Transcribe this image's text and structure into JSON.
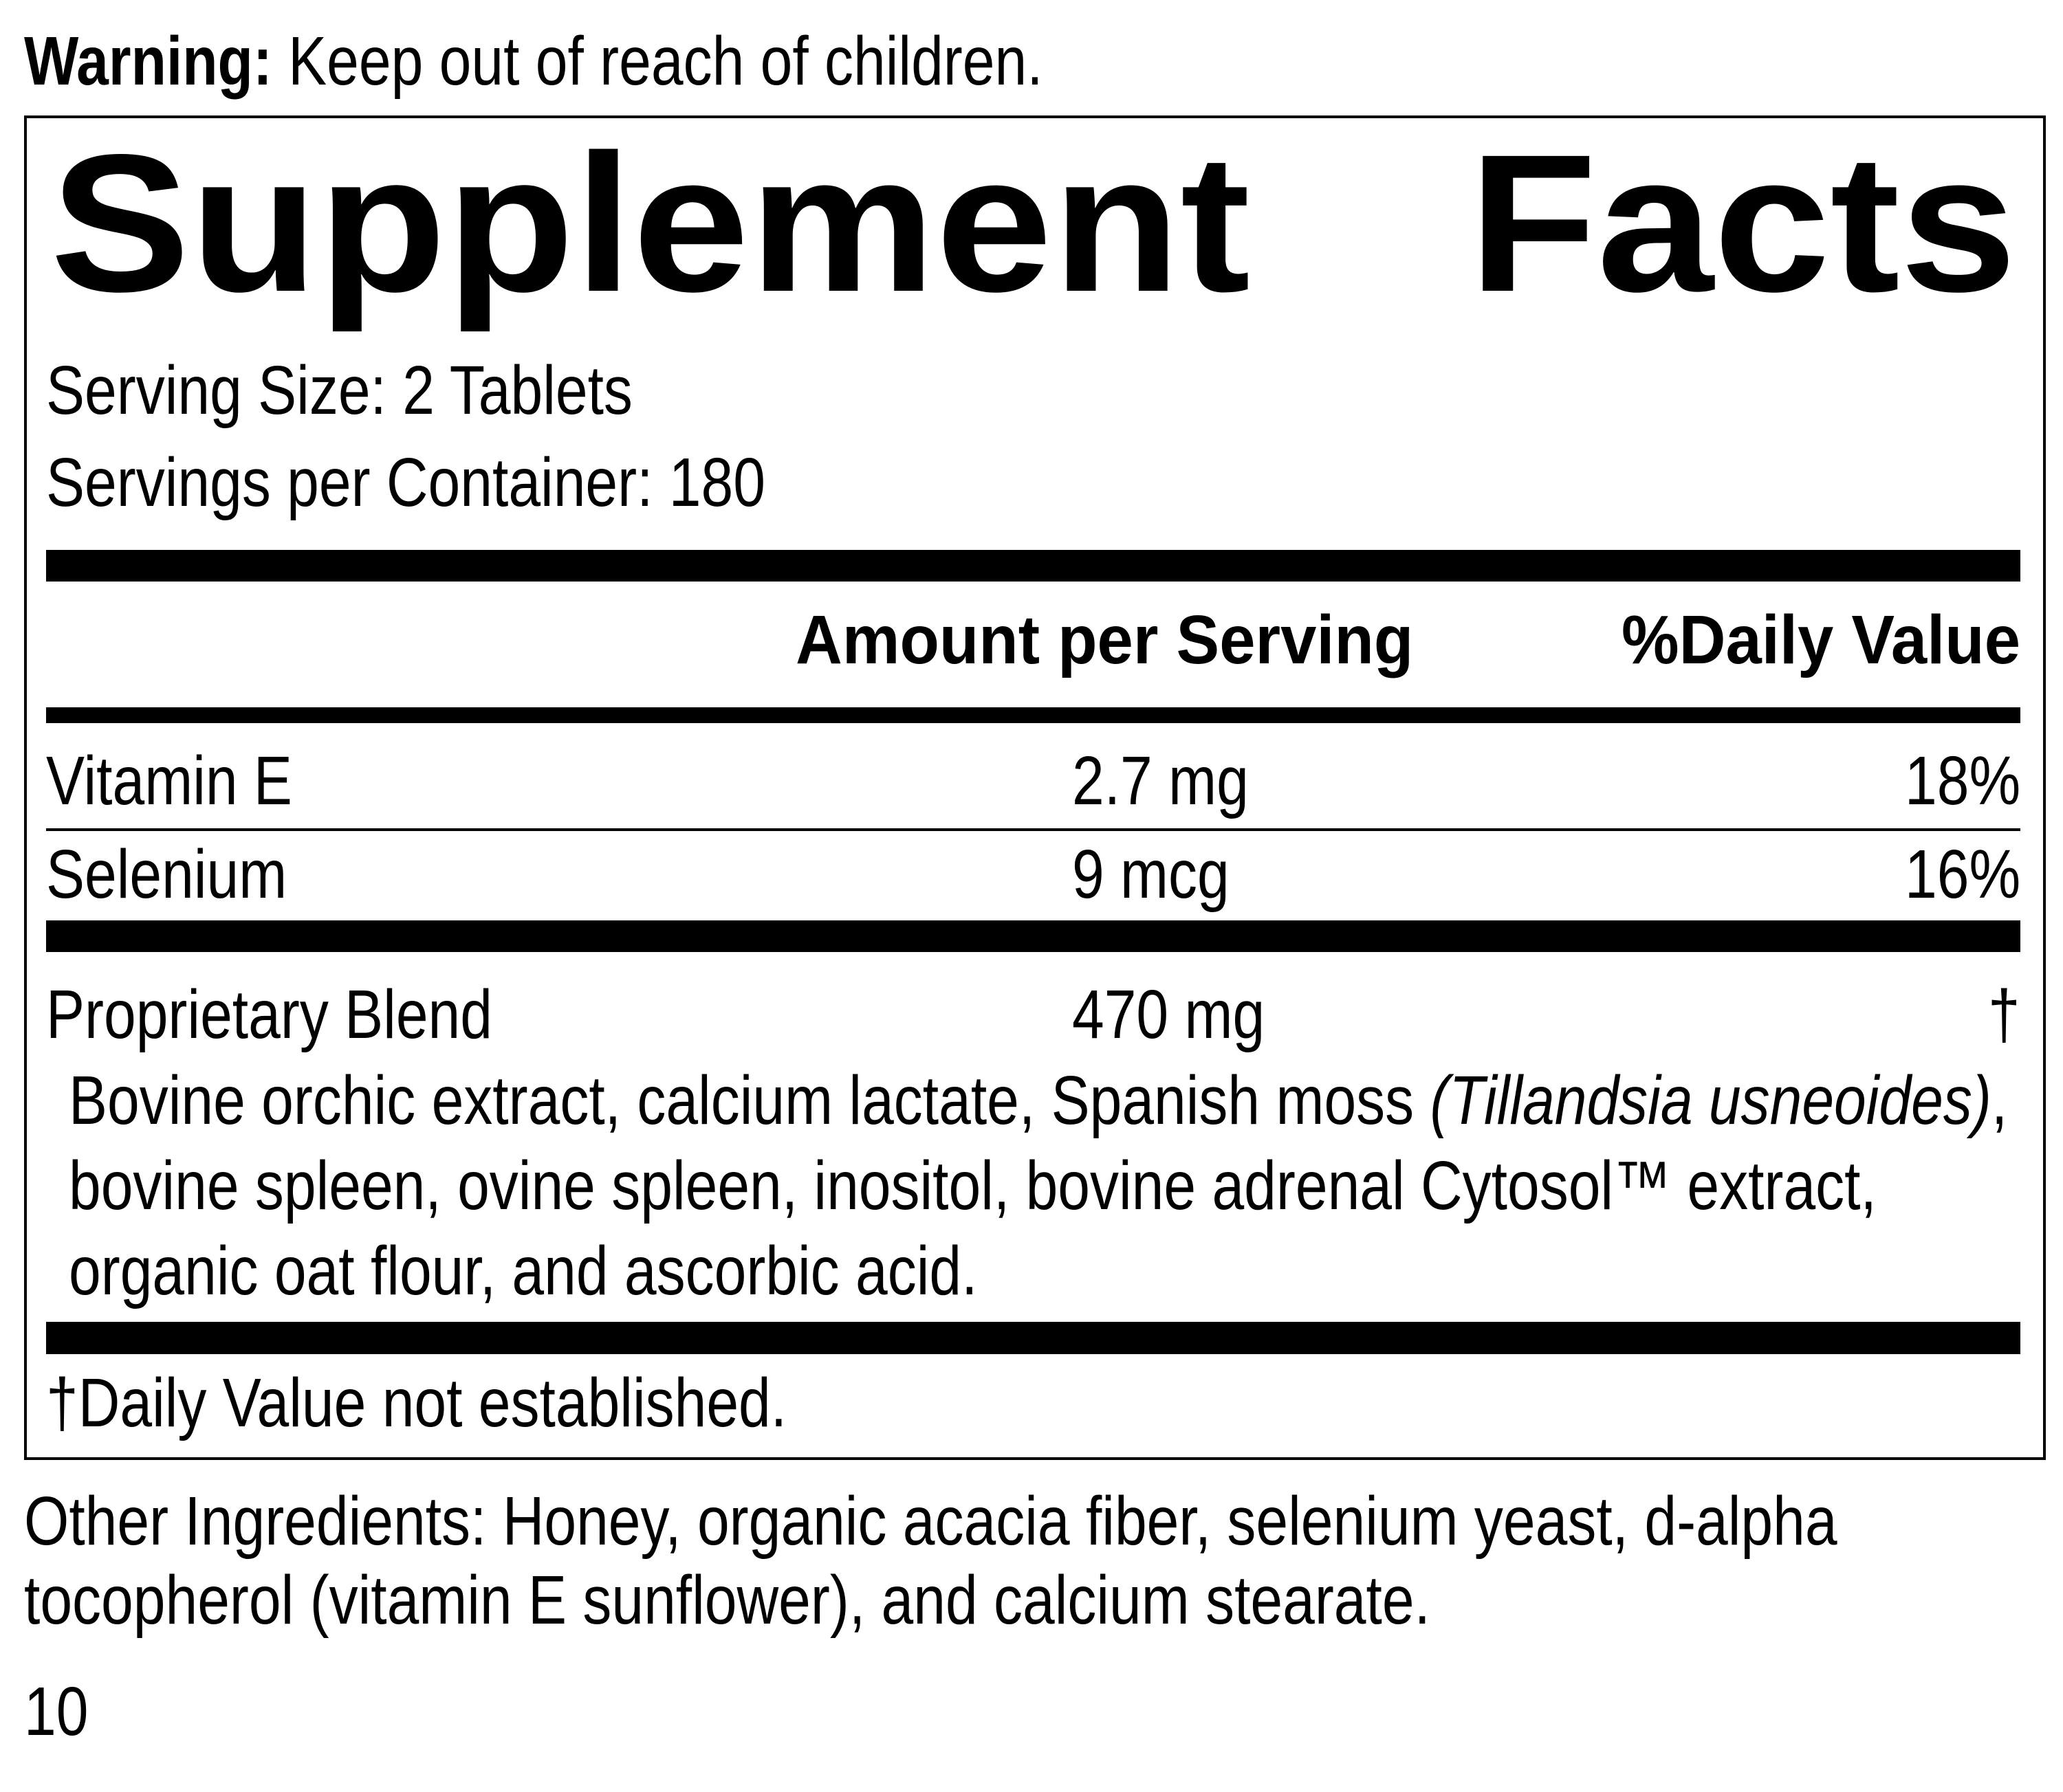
{
  "warning": {
    "label": "Warning:",
    "text": " Keep out of reach of children."
  },
  "panel": {
    "title_word1": "Supplement",
    "title_word2": "Facts",
    "serving_size": "Serving Size: 2 Tablets",
    "servings_per_container": "Servings per Container: 180",
    "header": {
      "amount": "Amount per Serving",
      "daily_value": "%Daily Value"
    },
    "rows": [
      {
        "name": "Vitamin E",
        "amount": "2.7 mg",
        "dv": "18%"
      },
      {
        "name": "Selenium",
        "amount": "9 mcg",
        "dv": "16%"
      },
      {
        "name": "Proprietary Blend",
        "amount": "470 mg",
        "dv": "†"
      }
    ],
    "blend_lines": {
      "line1_prefix": "Bovine orchic extract, calcium lactate, Spanish moss ",
      "line1_italic": "(Tillandsia usneoides)",
      "line1_suffix": ",",
      "line2": "bovine spleen, ovine spleen, inositol, bovine adrenal Cytosol™ extract,",
      "line3": "organic oat flour, and ascorbic acid."
    },
    "footnote": "†Daily Value not established."
  },
  "other_ingredients": {
    "line1": "Other Ingredients: Honey, organic acacia fiber, selenium yeast, d-alpha",
    "line2": "tocopherol (vitamin E sunflower), and calcium stearate."
  },
  "page_number": "10"
}
